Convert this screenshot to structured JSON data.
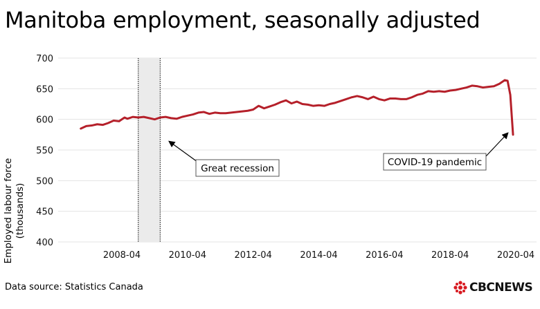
{
  "header": {
    "title": "Manitoba employment, seasonally adjusted"
  },
  "footer": {
    "source": "Data source: Statistics Canada",
    "logo_text": "CBCNEWS"
  },
  "colors": {
    "line": "#b5202a",
    "grid": "#e3e3e3",
    "recession_shade": "#ebebeb"
  },
  "chart_data": {
    "type": "line",
    "title": "Manitoba employment, seasonally adjusted",
    "ylabel": "Employed labour force (thousands)",
    "xlabel": "",
    "ylim": [
      400,
      700
    ],
    "yticks": [
      400,
      450,
      500,
      550,
      600,
      650,
      700
    ],
    "xlim": [
      "2006-10",
      "2020-07"
    ],
    "xticks": [
      "2008-04",
      "2010-04",
      "2012-04",
      "2014-04",
      "2016-04",
      "2018-04",
      "2020-04"
    ],
    "grid": "horizontal",
    "legend": "none",
    "shaded_period": {
      "start": "2008-10",
      "end": "2009-06"
    },
    "annotations": [
      {
        "text": "Great recession",
        "points_to": "2009-06"
      },
      {
        "text": "COVID-19 pandemic",
        "points_to": "2020-01"
      }
    ],
    "series": [
      {
        "values": [
          [
            "2007-01",
            585
          ],
          [
            "2007-03",
            589
          ],
          [
            "2007-05",
            590
          ],
          [
            "2007-07",
            592
          ],
          [
            "2007-09",
            591
          ],
          [
            "2007-11",
            594
          ],
          [
            "2008-01",
            598
          ],
          [
            "2008-03",
            597
          ],
          [
            "2008-04",
            600
          ],
          [
            "2008-05",
            603
          ],
          [
            "2008-06",
            601
          ],
          [
            "2008-08",
            604
          ],
          [
            "2008-10",
            603
          ],
          [
            "2008-12",
            604
          ],
          [
            "2009-02",
            602
          ],
          [
            "2009-04",
            600
          ],
          [
            "2009-06",
            603
          ],
          [
            "2009-08",
            604
          ],
          [
            "2009-10",
            602
          ],
          [
            "2009-12",
            601
          ],
          [
            "2010-02",
            604
          ],
          [
            "2010-04",
            606
          ],
          [
            "2010-06",
            608
          ],
          [
            "2010-08",
            611
          ],
          [
            "2010-10",
            612
          ],
          [
            "2010-12",
            609
          ],
          [
            "2011-02",
            611
          ],
          [
            "2011-04",
            610
          ],
          [
            "2011-06",
            610
          ],
          [
            "2011-08",
            611
          ],
          [
            "2011-10",
            612
          ],
          [
            "2011-12",
            613
          ],
          [
            "2012-02",
            614
          ],
          [
            "2012-04",
            616
          ],
          [
            "2012-06",
            622
          ],
          [
            "2012-08",
            618
          ],
          [
            "2012-10",
            621
          ],
          [
            "2012-12",
            624
          ],
          [
            "2013-02",
            628
          ],
          [
            "2013-04",
            631
          ],
          [
            "2013-06",
            626
          ],
          [
            "2013-08",
            629
          ],
          [
            "2013-10",
            625
          ],
          [
            "2013-12",
            624
          ],
          [
            "2014-02",
            622
          ],
          [
            "2014-04",
            623
          ],
          [
            "2014-06",
            622
          ],
          [
            "2014-08",
            625
          ],
          [
            "2014-10",
            627
          ],
          [
            "2014-12",
            630
          ],
          [
            "2015-02",
            633
          ],
          [
            "2015-04",
            636
          ],
          [
            "2015-06",
            638
          ],
          [
            "2015-08",
            636
          ],
          [
            "2015-10",
            633
          ],
          [
            "2015-12",
            637
          ],
          [
            "2016-02",
            633
          ],
          [
            "2016-04",
            631
          ],
          [
            "2016-06",
            634
          ],
          [
            "2016-08",
            634
          ],
          [
            "2016-10",
            633
          ],
          [
            "2016-12",
            633
          ],
          [
            "2017-02",
            636
          ],
          [
            "2017-04",
            640
          ],
          [
            "2017-06",
            642
          ],
          [
            "2017-08",
            646
          ],
          [
            "2017-10",
            645
          ],
          [
            "2017-12",
            646
          ],
          [
            "2018-02",
            645
          ],
          [
            "2018-04",
            647
          ],
          [
            "2018-06",
            648
          ],
          [
            "2018-08",
            650
          ],
          [
            "2018-10",
            652
          ],
          [
            "2018-12",
            655
          ],
          [
            "2019-02",
            654
          ],
          [
            "2019-04",
            652
          ],
          [
            "2019-06",
            653
          ],
          [
            "2019-08",
            654
          ],
          [
            "2019-10",
            658
          ],
          [
            "2019-12",
            664
          ],
          [
            "2020-01",
            663
          ],
          [
            "2020-02",
            640
          ],
          [
            "2020-03",
            575
          ]
        ]
      }
    ]
  }
}
